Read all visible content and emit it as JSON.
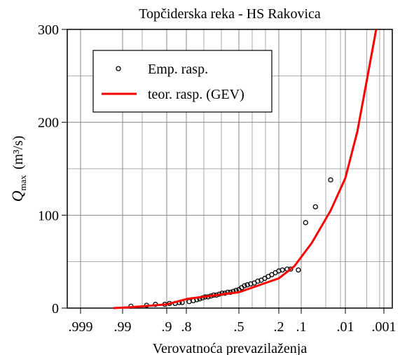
{
  "chart_data": {
    "type": "probability",
    "title": "Topčiderska reka - HS Rakovica",
    "xlabel": "Verovatnoća prevazilaženja",
    "ylabel": {
      "symbol": "Q",
      "subscript": "max",
      "unit": "(m³/s)"
    },
    "xticks": [
      {
        "value": 0.999,
        "label": ".999"
      },
      {
        "value": 0.99,
        "label": ".99"
      },
      {
        "value": 0.9,
        "label": ".9"
      },
      {
        "value": 0.8,
        "label": ".8"
      },
      {
        "value": 0.5,
        "label": ".5"
      },
      {
        "value": 0.2,
        "label": ".2"
      },
      {
        "value": 0.1,
        "label": ".1"
      },
      {
        "value": 0.01,
        "label": ".01"
      },
      {
        "value": 0.001,
        "label": ".001"
      }
    ],
    "xminorticks": [
      0.95,
      0.7,
      0.6,
      0.4,
      0.3,
      0.05,
      0.02,
      0.005,
      0.002
    ],
    "ylim": [
      0,
      300
    ],
    "yticks": [
      0,
      100,
      200,
      300
    ],
    "yminorticks": [
      50,
      150,
      250
    ],
    "grid": true,
    "legend": "upper left",
    "series": [
      {
        "name": "Emp. rasp.",
        "kind": "points",
        "color": "#000000",
        "x": [
          0.973,
          0.941,
          0.923,
          0.904,
          0.886,
          0.857,
          0.836,
          0.821,
          0.784,
          0.76,
          0.74,
          0.724,
          0.708,
          0.692,
          0.676,
          0.66,
          0.644,
          0.628,
          0.612,
          0.596,
          0.58,
          0.564,
          0.548,
          0.532,
          0.516,
          0.5,
          0.479,
          0.458,
          0.437,
          0.411,
          0.384,
          0.358,
          0.332,
          0.305,
          0.279,
          0.253,
          0.226,
          0.2,
          0.184,
          0.163,
          0.147,
          0.113,
          0.091,
          0.071,
          0.04
        ],
        "values": [
          2,
          3,
          4,
          4,
          5,
          5,
          6,
          6,
          7,
          8,
          9,
          10,
          11,
          12,
          12,
          13,
          14,
          14,
          15,
          16,
          16,
          17,
          17,
          18,
          19,
          20,
          22,
          24,
          25,
          26,
          27,
          29,
          30,
          32,
          34,
          36,
          38,
          40,
          41,
          42,
          42,
          41,
          92,
          109,
          138
        ]
      },
      {
        "name": "teor. rasp. (GEV)",
        "kind": "line",
        "color": "#ff0000",
        "x": [
          0.992,
          0.973,
          0.9,
          0.793,
          0.5,
          0.2,
          0.131,
          0.0786,
          0.04,
          0.01,
          0.0072,
          0.0048,
          0.0028
        ],
        "values": [
          0,
          1,
          4,
          10,
          17,
          32,
          45,
          70,
          105,
          140,
          190,
          250,
          300
        ]
      }
    ]
  }
}
